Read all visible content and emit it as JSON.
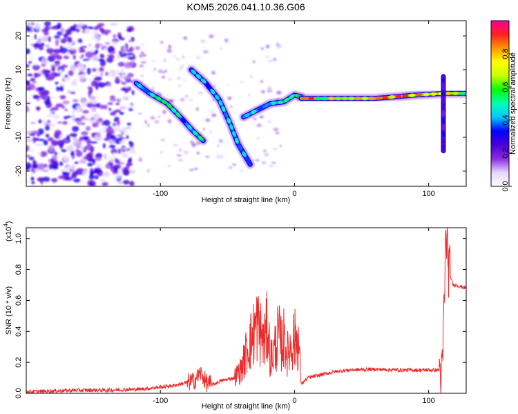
{
  "title": "KOM5.2026.041.10.36.G06",
  "chart_data": [
    {
      "type": "heatmap",
      "name": "spectrogram",
      "xlabel": "Height of straight line (km)",
      "ylabel": "Frequency (Hz)",
      "xlim": [
        -200,
        128
      ],
      "ylim": [
        -24.5,
        24.5
      ],
      "xticks": [
        -100,
        0,
        100
      ],
      "yticks": [
        -20,
        -10,
        0,
        10,
        20
      ],
      "colorbar": {
        "label": "Normalized spectral amplitude",
        "range": [
          0,
          1
        ],
        "ticks": [
          "0.0",
          "0.2",
          "0.4",
          "0.6",
          "0.8"
        ],
        "colors": [
          "#ffffff",
          "#e6d6ff",
          "#8a2be2",
          "#4b00d6",
          "#0000ff",
          "#00c8ff",
          "#00ffb4",
          "#00ff00",
          "#c8ff00",
          "#ffff00",
          "#ff9900",
          "#ff2020",
          "#ff0099"
        ]
      },
      "features": [
        {
          "name": "noise-region",
          "x_range": [
            -200,
            -120
          ],
          "y_range": [
            -24,
            24
          ],
          "amplitude": 0.15
        },
        {
          "name": "descending-track-1",
          "points": [
            [
              -118,
              6
            ],
            [
              -108,
              3
            ],
            [
              -95,
              0
            ],
            [
              -85,
              -4
            ],
            [
              -76,
              -8
            ],
            [
              -68,
              -11
            ]
          ],
          "amplitude": 0.6
        },
        {
          "name": "descending-track-2",
          "points": [
            [
              -77,
              10
            ],
            [
              -66,
              6
            ],
            [
              -56,
              1
            ],
            [
              -48,
              -6
            ],
            [
              -42,
              -12
            ],
            [
              -33,
              -18
            ]
          ],
          "amplitude": 0.55
        },
        {
          "name": "rising-track",
          "points": [
            [
              -38,
              -4
            ],
            [
              -28,
              -2
            ],
            [
              -18,
              0
            ],
            [
              -8,
              0.5
            ],
            [
              0,
              2.5
            ],
            [
              5,
              2
            ]
          ],
          "amplitude": 0.6
        },
        {
          "name": "steady-carrier",
          "points": [
            [
              5,
              1.5
            ],
            [
              30,
              1.5
            ],
            [
              60,
              1.5
            ],
            [
              90,
              2.5
            ],
            [
              112,
              3
            ],
            [
              128,
              3
            ]
          ],
          "amplitude": 0.95
        },
        {
          "name": "spike-line",
          "points": [
            [
              111,
              8
            ],
            [
              111,
              -14
            ]
          ],
          "amplitude": 0.35
        }
      ]
    },
    {
      "type": "line",
      "name": "snr",
      "xlabel": "Height of straight line (km)",
      "ylabel": "SNR (10 * v/v)",
      "y_scale_label": "(x10",
      "y_scale_exp": "4",
      "color": "#ee2a2a",
      "xlim": [
        -200,
        128
      ],
      "ylim": [
        0,
        1.07
      ],
      "xticks": [
        -100,
        0,
        100
      ],
      "yticks": [
        "0.0",
        "0.2",
        "0.4",
        "0.6",
        "0.8",
        "1.0"
      ],
      "x": [
        -200,
        -180,
        -160,
        -140,
        -120,
        -110,
        -100,
        -90,
        -85,
        -80,
        -75,
        -70,
        -65,
        -60,
        -55,
        -50,
        -45,
        -40,
        -38,
        -35,
        -32,
        -28,
        -25,
        -22,
        -20,
        -18,
        -15,
        -12,
        -10,
        -8,
        -5,
        -3,
        -1,
        3,
        5,
        10,
        20,
        30,
        40,
        60,
        80,
        100,
        108,
        110,
        111,
        112,
        113,
        115,
        118,
        120,
        128
      ],
      "y": [
        0.01,
        0.015,
        0.02,
        0.02,
        0.025,
        0.03,
        0.04,
        0.05,
        0.06,
        0.07,
        0.08,
        0.13,
        0.06,
        0.06,
        0.08,
        0.09,
        0.1,
        0.15,
        0.2,
        0.3,
        0.35,
        0.45,
        0.38,
        0.33,
        0.45,
        0.22,
        0.28,
        0.38,
        0.32,
        0.35,
        0.25,
        0.3,
        0.35,
        0.34,
        0.06,
        0.1,
        0.12,
        0.14,
        0.15,
        0.155,
        0.15,
        0.15,
        0.15,
        0.08,
        0.4,
        0.7,
        1.05,
        0.8,
        0.7,
        0.7,
        0.68
      ]
    }
  ]
}
